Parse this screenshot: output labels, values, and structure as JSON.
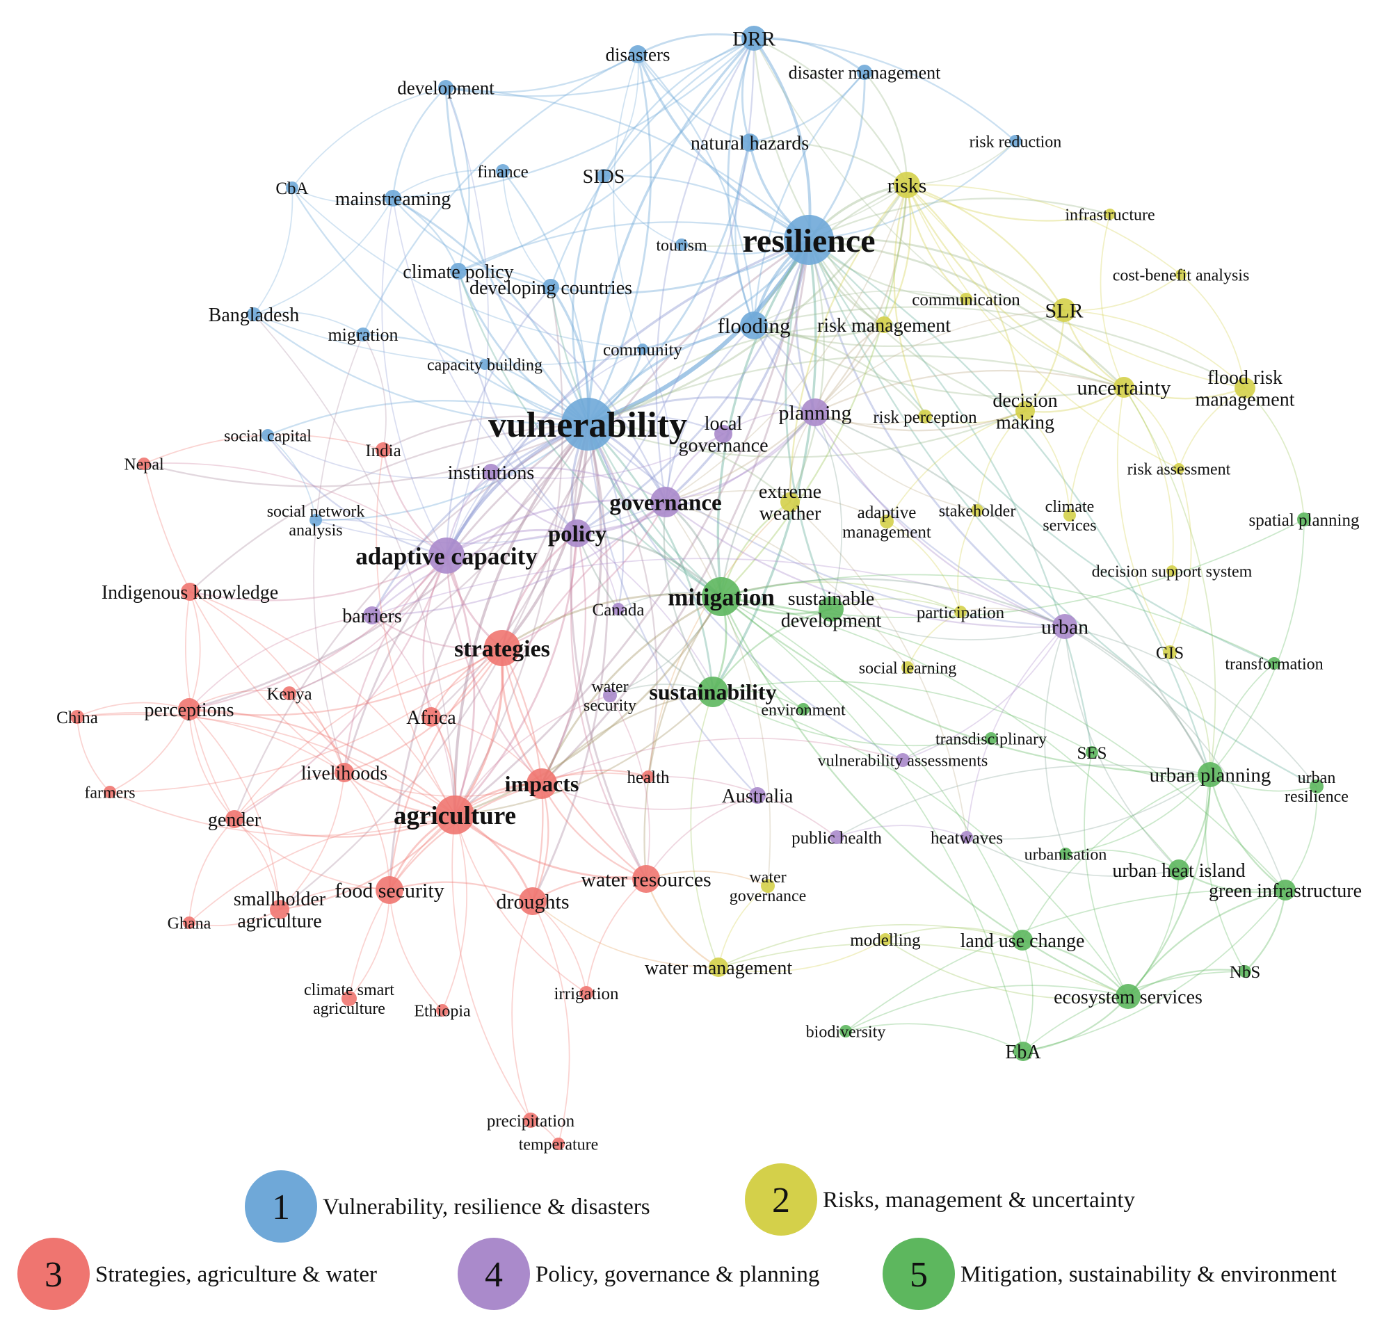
{
  "clusters": [
    {
      "id": 1,
      "label": "Vulnerability, resilience & disasters",
      "color": "#6FA8D8"
    },
    {
      "id": 2,
      "label": "Risks, management & uncertainty",
      "color": "#D4D04A"
    },
    {
      "id": 3,
      "label": "Strategies, agriculture & water",
      "color": "#EF7570"
    },
    {
      "id": 4,
      "label": "Policy, governance & planning",
      "color": "#AA8ACB"
    },
    {
      "id": 5,
      "label": "Mitigation, sustainability & environment",
      "color": "#5DB75E"
    }
  ],
  "nodes": [
    {
      "id": "resilience",
      "label": [
        "resilience"
      ],
      "c": 1,
      "w": 10
    },
    {
      "id": "vulnerability",
      "label": [
        "vulnerability"
      ],
      "c": 1,
      "w": 10
    },
    {
      "id": "drr",
      "label": [
        "DRR"
      ],
      "c": 1,
      "w": 5
    },
    {
      "id": "disasters",
      "label": [
        "disasters"
      ],
      "c": 1,
      "w": 4
    },
    {
      "id": "disaster_management",
      "label": [
        "disaster management"
      ],
      "c": 1,
      "w": 3
    },
    {
      "id": "development",
      "label": [
        "development"
      ],
      "c": 1,
      "w": 3
    },
    {
      "id": "natural_hazards",
      "label": [
        "natural hazards"
      ],
      "c": 1,
      "w": 4
    },
    {
      "id": "risk_reduction",
      "label": [
        "risk reduction"
      ],
      "c": 1,
      "w": 3
    },
    {
      "id": "cba",
      "label": [
        "CbA"
      ],
      "c": 1,
      "w": 3
    },
    {
      "id": "finance",
      "label": [
        "finance"
      ],
      "c": 1,
      "w": 3
    },
    {
      "id": "sids",
      "label": [
        "SIDS"
      ],
      "c": 1,
      "w": 3
    },
    {
      "id": "mainstreaming",
      "label": [
        "mainstreaming"
      ],
      "c": 1,
      "w": 4
    },
    {
      "id": "tourism",
      "label": [
        "tourism"
      ],
      "c": 1,
      "w": 3
    },
    {
      "id": "climate_policy",
      "label": [
        "climate policy"
      ],
      "c": 1,
      "w": 4
    },
    {
      "id": "developing_countries",
      "label": [
        "developing countries"
      ],
      "c": 1,
      "w": 4
    },
    {
      "id": "bangladesh",
      "label": [
        "Bangladesh"
      ],
      "c": 1,
      "w": 3
    },
    {
      "id": "migration",
      "label": [
        "migration"
      ],
      "c": 1,
      "w": 3
    },
    {
      "id": "flooding",
      "label": [
        "flooding"
      ],
      "c": 1,
      "w": 6
    },
    {
      "id": "community",
      "label": [
        "community"
      ],
      "c": 1,
      "w": 3
    },
    {
      "id": "capacity_building",
      "label": [
        "capacity building"
      ],
      "c": 1,
      "w": 3
    },
    {
      "id": "social_capital",
      "label": [
        "social capital"
      ],
      "c": 1,
      "w": 3
    },
    {
      "id": "social_network_analysis",
      "label": [
        "social network",
        "analysis"
      ],
      "c": 1,
      "w": 3
    },
    {
      "id": "risks",
      "label": [
        "risks"
      ],
      "c": 2,
      "w": 6
    },
    {
      "id": "infrastructure",
      "label": [
        "infrastructure"
      ],
      "c": 2,
      "w": 3
    },
    {
      "id": "cost_benefit_analysis",
      "label": [
        "cost-benefit analysis"
      ],
      "c": 2,
      "w": 3
    },
    {
      "id": "communication",
      "label": [
        "communication"
      ],
      "c": 2,
      "w": 3
    },
    {
      "id": "slr",
      "label": [
        "SLR"
      ],
      "c": 2,
      "w": 5
    },
    {
      "id": "risk_management",
      "label": [
        "risk management"
      ],
      "c": 2,
      "w": 4
    },
    {
      "id": "flood_risk_management",
      "label": [
        "flood risk",
        "management"
      ],
      "c": 2,
      "w": 5
    },
    {
      "id": "uncertainty",
      "label": [
        "uncertainty"
      ],
      "c": 2,
      "w": 5
    },
    {
      "id": "decision_making",
      "label": [
        "decision",
        "making"
      ],
      "c": 2,
      "w": 4
    },
    {
      "id": "risk_perception",
      "label": [
        "risk perception"
      ],
      "c": 2,
      "w": 3
    },
    {
      "id": "risk_assessment",
      "label": [
        "risk assessment"
      ],
      "c": 2,
      "w": 3
    },
    {
      "id": "extreme_weather",
      "label": [
        "extreme",
        "weather"
      ],
      "c": 2,
      "w": 4
    },
    {
      "id": "adaptive_management",
      "label": [
        "adaptive",
        "management"
      ],
      "c": 2,
      "w": 3
    },
    {
      "id": "stakeholder",
      "label": [
        "stakeholder"
      ],
      "c": 2,
      "w": 3
    },
    {
      "id": "climate_services",
      "label": [
        "climate",
        "services"
      ],
      "c": 2,
      "w": 3
    },
    {
      "id": "decision_support_system",
      "label": [
        "decision support system"
      ],
      "c": 2,
      "w": 3
    },
    {
      "id": "gis",
      "label": [
        "GIS"
      ],
      "c": 2,
      "w": 3
    },
    {
      "id": "participation",
      "label": [
        "participation"
      ],
      "c": 2,
      "w": 3
    },
    {
      "id": "social_learning",
      "label": [
        "social learning"
      ],
      "c": 2,
      "w": 3
    },
    {
      "id": "water_governance",
      "label": [
        "water",
        "governance"
      ],
      "c": 2,
      "w": 3
    },
    {
      "id": "water_management",
      "label": [
        "water management"
      ],
      "c": 2,
      "w": 4
    },
    {
      "id": "modelling",
      "label": [
        "modelling"
      ],
      "c": 2,
      "w": 3
    },
    {
      "id": "india",
      "label": [
        "India"
      ],
      "c": 3,
      "w": 3
    },
    {
      "id": "nepal",
      "label": [
        "Nepal"
      ],
      "c": 3,
      "w": 3
    },
    {
      "id": "indigenous_knowledge",
      "label": [
        "Indigenous knowledge"
      ],
      "c": 3,
      "w": 4
    },
    {
      "id": "strategies",
      "label": [
        "strategies"
      ],
      "c": 3,
      "w": 7
    },
    {
      "id": "perceptions",
      "label": [
        "perceptions"
      ],
      "c": 3,
      "w": 4
    },
    {
      "id": "kenya",
      "label": [
        "Kenya"
      ],
      "c": 3,
      "w": 3
    },
    {
      "id": "china",
      "label": [
        "China"
      ],
      "c": 3,
      "w": 3
    },
    {
      "id": "africa",
      "label": [
        "Africa"
      ],
      "c": 3,
      "w": 4
    },
    {
      "id": "farmers",
      "label": [
        "farmers"
      ],
      "c": 3,
      "w": 3
    },
    {
      "id": "livelihoods",
      "label": [
        "livelihoods"
      ],
      "c": 3,
      "w": 4
    },
    {
      "id": "impacts",
      "label": [
        "impacts"
      ],
      "c": 3,
      "w": 6
    },
    {
      "id": "health",
      "label": [
        "health"
      ],
      "c": 3,
      "w": 3
    },
    {
      "id": "gender",
      "label": [
        "gender"
      ],
      "c": 3,
      "w": 4
    },
    {
      "id": "agriculture",
      "label": [
        "agriculture"
      ],
      "c": 3,
      "w": 9
    },
    {
      "id": "food_security",
      "label": [
        "food security"
      ],
      "c": 3,
      "w": 5
    },
    {
      "id": "smallholder_agriculture",
      "label": [
        "smallholder",
        "agriculture"
      ],
      "c": 3,
      "w": 4
    },
    {
      "id": "ghana",
      "label": [
        "Ghana"
      ],
      "c": 3,
      "w": 3
    },
    {
      "id": "droughts",
      "label": [
        "droughts"
      ],
      "c": 3,
      "w": 5
    },
    {
      "id": "water_resources",
      "label": [
        "water resources"
      ],
      "c": 3,
      "w": 5
    },
    {
      "id": "climate_smart_agriculture",
      "label": [
        "climate smart",
        "agriculture"
      ],
      "c": 3,
      "w": 3
    },
    {
      "id": "ethiopia",
      "label": [
        "Ethiopia"
      ],
      "c": 3,
      "w": 3
    },
    {
      "id": "irrigation",
      "label": [
        "irrigation"
      ],
      "c": 3,
      "w": 3
    },
    {
      "id": "precipitation",
      "label": [
        "precipitation"
      ],
      "c": 3,
      "w": 3
    },
    {
      "id": "temperature",
      "label": [
        "temperature"
      ],
      "c": 3,
      "w": 3
    },
    {
      "id": "planning",
      "label": [
        "planning"
      ],
      "c": 4,
      "w": 5
    },
    {
      "id": "local_governance",
      "label": [
        "local",
        "governance"
      ],
      "c": 4,
      "w": 4
    },
    {
      "id": "institutions",
      "label": [
        "institutions"
      ],
      "c": 4,
      "w": 4
    },
    {
      "id": "governance",
      "label": [
        "governance"
      ],
      "c": 4,
      "w": 6
    },
    {
      "id": "policy",
      "label": [
        "policy"
      ],
      "c": 4,
      "w": 6
    },
    {
      "id": "adaptive_capacity",
      "label": [
        "adaptive capacity"
      ],
      "c": 4,
      "w": 7
    },
    {
      "id": "barriers",
      "label": [
        "barriers"
      ],
      "c": 4,
      "w": 4
    },
    {
      "id": "canada",
      "label": [
        "Canada"
      ],
      "c": 4,
      "w": 3
    },
    {
      "id": "water_security",
      "label": [
        "water",
        "security"
      ],
      "c": 4,
      "w": 3
    },
    {
      "id": "urban",
      "label": [
        "urban"
      ],
      "c": 4,
      "w": 5
    },
    {
      "id": "vulnerability_assessments",
      "label": [
        "vulnerability assessments"
      ],
      "c": 4,
      "w": 3
    },
    {
      "id": "australia",
      "label": [
        "Australia"
      ],
      "c": 4,
      "w": 4
    },
    {
      "id": "public_health",
      "label": [
        "public health"
      ],
      "c": 4,
      "w": 3
    },
    {
      "id": "heatwaves",
      "label": [
        "heatwaves"
      ],
      "c": 4,
      "w": 3
    },
    {
      "id": "mitigation",
      "label": [
        "mitigation"
      ],
      "c": 5,
      "w": 7
    },
    {
      "id": "sustainable_development",
      "label": [
        "sustainable",
        "development"
      ],
      "c": 5,
      "w": 5
    },
    {
      "id": "spatial_planning",
      "label": [
        "spatial planning"
      ],
      "c": 5,
      "w": 3
    },
    {
      "id": "transformation",
      "label": [
        "transformation"
      ],
      "c": 5,
      "w": 3
    },
    {
      "id": "sustainability",
      "label": [
        "sustainability"
      ],
      "c": 5,
      "w": 6
    },
    {
      "id": "environment",
      "label": [
        "environment"
      ],
      "c": 5,
      "w": 3
    },
    {
      "id": "transdisciplinary",
      "label": [
        "transdisciplinary"
      ],
      "c": 5,
      "w": 3
    },
    {
      "id": "ses",
      "label": [
        "SES"
      ],
      "c": 5,
      "w": 3
    },
    {
      "id": "urban_planning",
      "label": [
        "urban planning"
      ],
      "c": 5,
      "w": 5
    },
    {
      "id": "urban_resilience",
      "label": [
        "urban",
        "resilience"
      ],
      "c": 5,
      "w": 3
    },
    {
      "id": "urbanisation",
      "label": [
        "urbanisation"
      ],
      "c": 5,
      "w": 3
    },
    {
      "id": "urban_heat_island",
      "label": [
        "urban heat island"
      ],
      "c": 5,
      "w": 4
    },
    {
      "id": "green_infrastructure",
      "label": [
        "green infrastructure"
      ],
      "c": 5,
      "w": 4
    },
    {
      "id": "land_use_change",
      "label": [
        "land use change"
      ],
      "c": 5,
      "w": 4
    },
    {
      "id": "nbs",
      "label": [
        "NbS"
      ],
      "c": 5,
      "w": 3
    },
    {
      "id": "ecosystem_services",
      "label": [
        "ecosystem services"
      ],
      "c": 5,
      "w": 5
    },
    {
      "id": "biodiversity",
      "label": [
        "biodiversity"
      ],
      "c": 5,
      "w": 3
    },
    {
      "id": "eba",
      "label": [
        "EbA"
      ],
      "c": 5,
      "w": 4
    }
  ]
}
